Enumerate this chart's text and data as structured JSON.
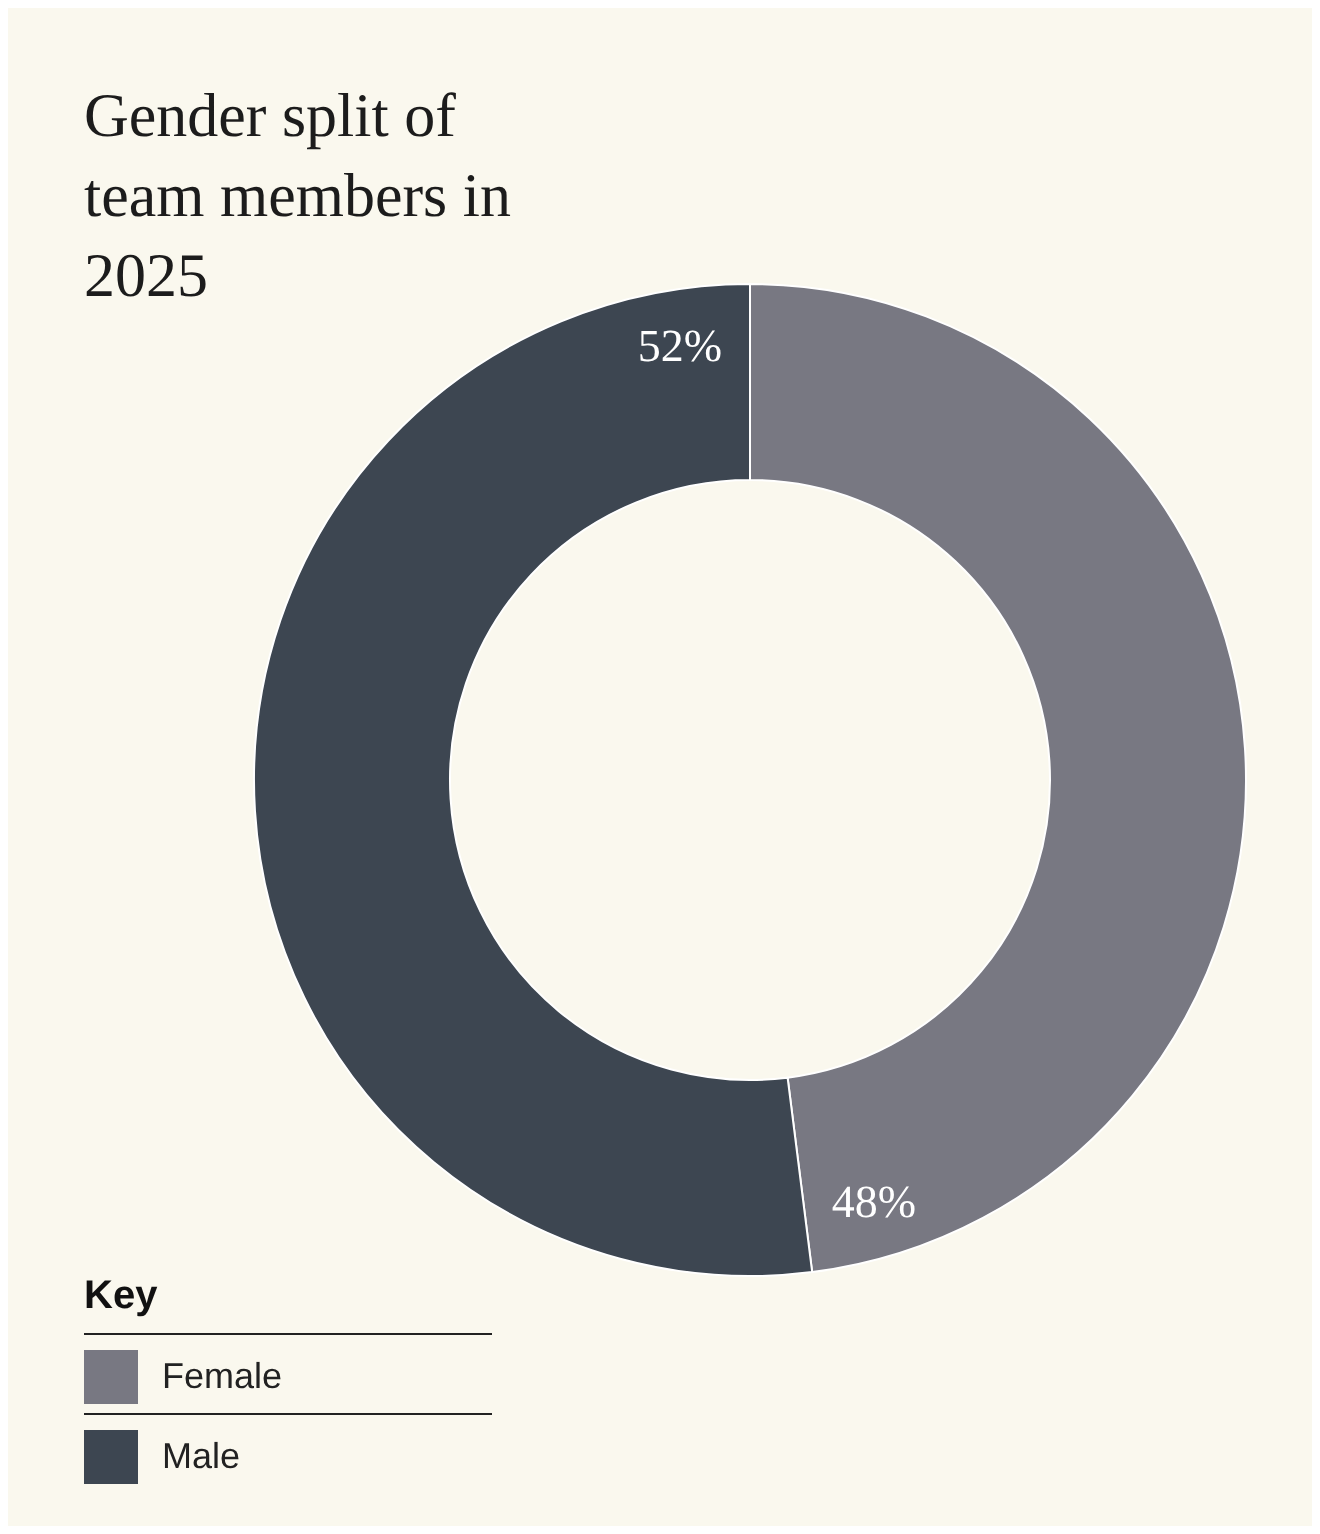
{
  "chart_data": {
    "type": "donut",
    "title": "Gender split of team members in 2025",
    "legend_title": "Key",
    "legend": "bottom left",
    "categories": [
      "Female",
      "Male"
    ],
    "values": [
      48,
      52
    ],
    "value_labels": [
      "48%",
      "52%"
    ],
    "colors": [
      "#787882",
      "#3d4651"
    ]
  }
}
